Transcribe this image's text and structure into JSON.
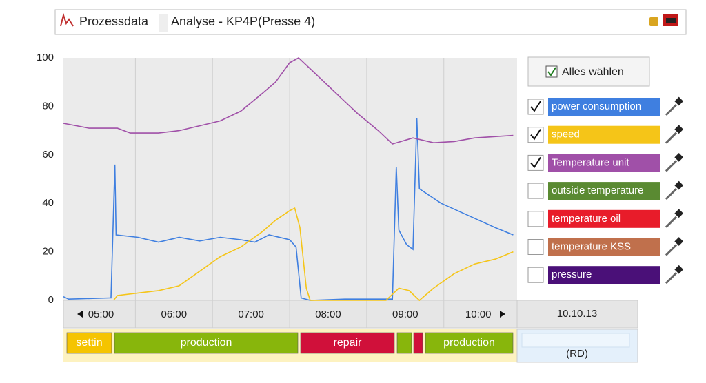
{
  "header": {
    "title_1": "Prozessdata",
    "title_2": "Analyse - KP4P(Presse 4)"
  },
  "select_all": "Alles wählen",
  "date": "10.10.13",
  "operator": "(RD)",
  "status": [
    {
      "label": "settin",
      "color": "#f5c400"
    },
    {
      "label": "production",
      "color": "#88b60c"
    },
    {
      "label": "repair",
      "color": "#d0103a"
    },
    {
      "color": "#88b60c"
    },
    {
      "color": "#d0103a"
    },
    {
      "label": "production",
      "color": "#88b60c"
    }
  ],
  "chart_data": {
    "type": "line",
    "xlim": [
      "04:34",
      "10:27"
    ],
    "xticks": [
      "05:00",
      "06:00",
      "07:00",
      "08:00",
      "09:00",
      "10:00"
    ],
    "ylim": [
      0,
      100
    ],
    "yticks": [
      0,
      20,
      40,
      60,
      80,
      100
    ],
    "series": [
      {
        "name": "power consumption",
        "color": "#3f7fe0",
        "checked": true,
        "x": [
          "04:34",
          "04:38",
          "05:10",
          "05:11",
          "05:14",
          "05:15",
          "05:32",
          "05:48",
          "06:04",
          "06:20",
          "06:36",
          "06:52",
          "07:03",
          "07:14",
          "07:30",
          "07:35",
          "07:39",
          "07:46",
          "08:13",
          "08:50",
          "08:53",
          "08:55",
          "09:01",
          "09:06",
          "09:09",
          "09:11",
          "09:28",
          "09:49",
          "10:10",
          "10:24"
        ],
        "values": [
          1.5,
          0.5,
          1,
          1,
          56,
          27,
          26,
          24,
          26,
          24.5,
          26,
          25,
          24,
          27,
          25,
          22,
          1,
          0,
          0.5,
          0.5,
          55,
          29,
          23,
          21,
          75,
          46,
          40,
          35,
          30,
          27
        ]
      },
      {
        "name": "speed",
        "color": "#f5c518",
        "checked": true,
        "x": [
          "05:13",
          "05:16",
          "05:32",
          "05:48",
          "06:04",
          "06:20",
          "06:36",
          "06:52",
          "07:08",
          "07:19",
          "07:30",
          "07:34",
          "07:38",
          "07:43",
          "07:46",
          "08:13",
          "08:45",
          "08:55",
          "09:03",
          "09:11",
          "09:22",
          "09:38",
          "09:54",
          "10:10",
          "10:24"
        ],
        "values": [
          0,
          2,
          3,
          4,
          6,
          12,
          18,
          22,
          28,
          33,
          37,
          38,
          30,
          5,
          0,
          0,
          0,
          5,
          4,
          0,
          5,
          11,
          15,
          17,
          20
        ]
      },
      {
        "name": "Temperature unit",
        "color": "#a050a8",
        "checked": true,
        "x": [
          "04:34",
          "04:54",
          "05:16",
          "05:26",
          "05:48",
          "06:04",
          "06:20",
          "06:36",
          "06:52",
          "07:08",
          "07:19",
          "07:30",
          "07:37",
          "07:51",
          "08:07",
          "08:23",
          "08:39",
          "08:50",
          "09:06",
          "09:22",
          "09:38",
          "09:54",
          "10:24"
        ],
        "values": [
          73,
          71,
          71,
          69,
          69,
          70,
          72,
          74,
          78,
          85,
          90,
          98,
          100,
          93,
          85,
          77,
          70,
          64.5,
          67,
          65,
          65.5,
          67,
          68
        ]
      },
      {
        "name": "outside temperature",
        "color": "#5a8a32",
        "checked": false
      },
      {
        "name": "temperature oil",
        "color": "#e81c2a",
        "checked": false
      },
      {
        "name": "temperature KSS",
        "color": "#c0704c",
        "checked": false
      },
      {
        "name": "pressure",
        "color": "#4a1078",
        "checked": false
      }
    ]
  }
}
